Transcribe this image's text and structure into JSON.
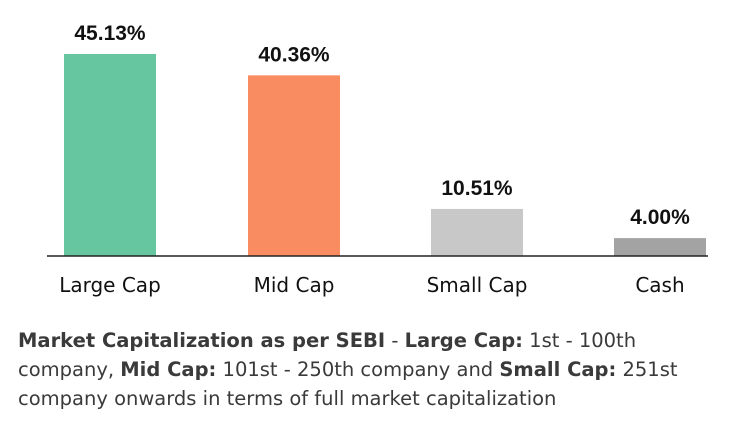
{
  "chart_data": {
    "type": "bar",
    "categories": [
      "Large Cap",
      "Mid Cap",
      "Small Cap",
      "Cash"
    ],
    "values": [
      45.13,
      40.36,
      10.51,
      4.0
    ],
    "value_labels": [
      "45.13%",
      "40.36%",
      "10.51%",
      "4.00%"
    ],
    "colors": [
      "#66c6a0",
      "#fa8c62",
      "#c8c8c8",
      "#a3a3a3"
    ],
    "ylim": [
      0,
      45.13
    ],
    "grid": false,
    "title": "",
    "xlabel": "",
    "ylabel": ""
  },
  "note": {
    "part1_bold": "Market Capitalization as per SEBI",
    "part2": " - ",
    "part3_bold": "Large Cap:",
    "part4": " 1st - 100th company, ",
    "part5_bold": "Mid Cap:",
    "part6": " 101st - 250th company and ",
    "part7_bold": "Small Cap:",
    "part8": " 251st company onwards in terms of full market capitalization"
  }
}
